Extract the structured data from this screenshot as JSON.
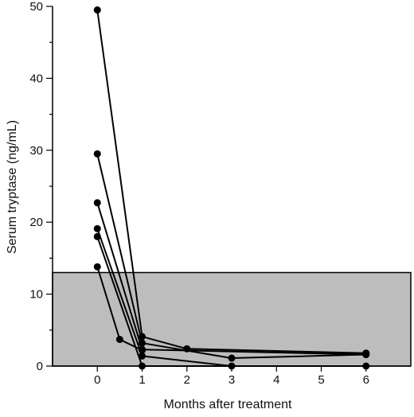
{
  "chart_data": {
    "type": "line",
    "xlabel": "Months after treatment",
    "ylabel": "Serum tryptase (ng/mL)",
    "xlim": [
      -1,
      7
    ],
    "ylim": [
      0,
      50
    ],
    "x_ticks": [
      0,
      1,
      2,
      3,
      4,
      5,
      6
    ],
    "y_ticks": [
      0,
      10,
      20,
      30,
      40,
      50
    ],
    "reference_band": {
      "y_from": 0,
      "y_to": 13,
      "color": "#bdbdbd"
    },
    "series": [
      {
        "points": [
          [
            0,
            49.5
          ],
          [
            1,
            4.1
          ],
          [
            2,
            2.4
          ],
          [
            6,
            1.8
          ]
        ]
      },
      {
        "points": [
          [
            0,
            29.5
          ],
          [
            1,
            3.2
          ],
          [
            3,
            1.1
          ],
          [
            6,
            1.6
          ]
        ]
      },
      {
        "points": [
          [
            0,
            22.7
          ],
          [
            1,
            2.3
          ],
          [
            6,
            1.6
          ]
        ]
      },
      {
        "points": [
          [
            0,
            19.1
          ],
          [
            1,
            1.4
          ],
          [
            3,
            0.0
          ]
        ]
      },
      {
        "points": [
          [
            0,
            18.0
          ],
          [
            1,
            0.0
          ],
          [
            6,
            0.0
          ]
        ]
      },
      {
        "points": [
          [
            0,
            13.8
          ],
          [
            0.5,
            3.7
          ],
          [
            1,
            2.2
          ]
        ]
      }
    ],
    "line_color": "#000000",
    "marker_color": "#000000"
  }
}
